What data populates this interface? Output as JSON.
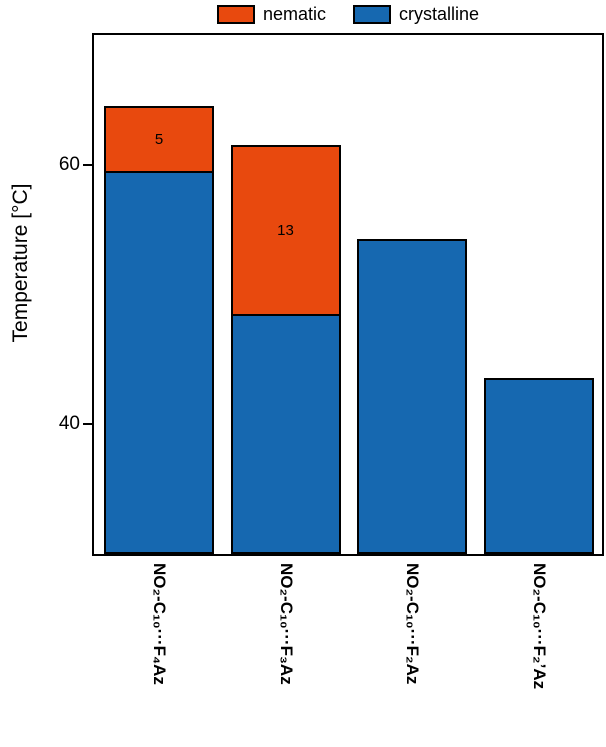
{
  "legend": {
    "items": [
      {
        "label": "nematic",
        "color": "#e8490e"
      },
      {
        "label": "crystalline",
        "color": "#1668b0"
      }
    ]
  },
  "chart_data": {
    "type": "bar",
    "stacked": true,
    "title": "",
    "ylabel": "Temperature [°C]",
    "ylim": [
      30,
      70
    ],
    "yticks": [
      40,
      60
    ],
    "grid": false,
    "legend_position": "top-center",
    "categories": [
      "NO₂-C₁₀···F₄Az",
      "NO₂-C₁₀···F₃Az",
      "NO₂-C₁₀···F₂Az",
      "NO₂-C₁₀···F₂’Az"
    ],
    "series_colors": {
      "crystalline": "#1668b0",
      "nematic": "#e8490e"
    },
    "bars": [
      {
        "category": "NO₂-C₁₀···F₄Az",
        "crystalline_top": 59.5,
        "nematic_top": 64.5,
        "nematic_label": "5"
      },
      {
        "category": "NO₂-C₁₀···F₃Az",
        "crystalline_top": 48.5,
        "nematic_top": 61.5,
        "nematic_label": "13"
      },
      {
        "category": "NO₂-C₁₀···F₂Az",
        "crystalline_top": 54.3,
        "nematic_top": null,
        "nematic_label": ""
      },
      {
        "category": "NO₂-C₁₀···F₂’Az",
        "crystalline_top": 43.6,
        "nematic_top": null,
        "nematic_label": ""
      }
    ]
  }
}
